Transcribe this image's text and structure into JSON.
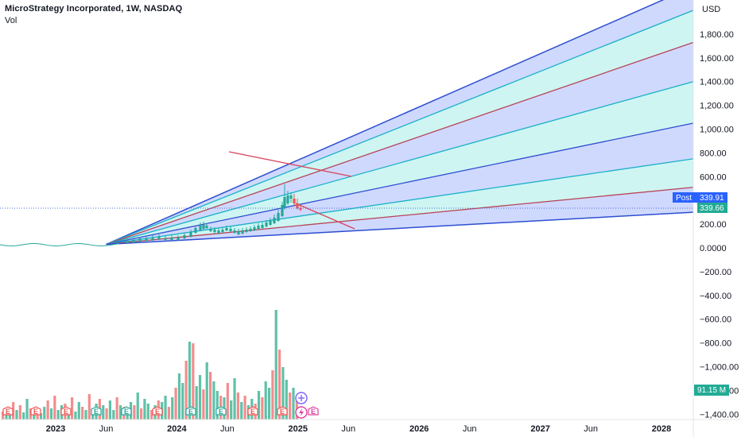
{
  "header": {
    "title": "MicroStrategy Incorporated, 1W, NASDAQ",
    "vol_label": "Vol",
    "currency": "USD"
  },
  "price_axis": {
    "ticks": [
      1800,
      1600,
      1400,
      1200,
      1000,
      800,
      600,
      400,
      200,
      0,
      -200,
      -400,
      -600,
      -800,
      -1000,
      -1200,
      -1400
    ],
    "tick_labels": [
      "1,800.00",
      "1,600.00",
      "1,400.00",
      "1,200.00",
      "1,000.00",
      "800.00",
      "600.00",
      "400.00",
      "200.00",
      "0.0000",
      "−200.00",
      "−400.00",
      "−600.00",
      "−800.00",
      "−1,000.00",
      "−1,200.00",
      "−1,400.00"
    ],
    "post_label": "Post",
    "post_value": "339.91",
    "last_value": "339.66",
    "volume_value": "91.15 M"
  },
  "time_axis": {
    "labels": [
      "2023",
      "Jun",
      "2024",
      "Jun",
      "2025",
      "Jun",
      "2026",
      "Jun",
      "2027",
      "Jun",
      "2028"
    ]
  },
  "chart_data": {
    "type": "candlestick",
    "interval": "1W",
    "x_range": [
      "2022-07",
      "2028-04"
    ],
    "y_range": [
      -1450,
      1920
    ],
    "last_price": 339.66,
    "post_price": 339.91,
    "gann_fan": {
      "origin": {
        "date": "2023-06",
        "value": 30
      },
      "anchor": {
        "date": "2024-03",
        "value": 140
      },
      "fan_lines_through_2028_04": [
        2200,
        2000,
        1730,
        1400,
        1050,
        750,
        510,
        300
      ],
      "fill_colors": [
        "#c7d2fe",
        "#c6f3f0"
      ],
      "line_colors": [
        "#2d4ed1",
        "#1ab0c8",
        "#b84455"
      ]
    },
    "candles_ohlc_weekly_approx": [
      {
        "date": "2024-12",
        "value_high": 540,
        "value_close": 380
      },
      {
        "date": "2025-01",
        "value_close": 339.66
      }
    ],
    "volume": {
      "label": "Vol",
      "latest": "91.15 M",
      "colors": {
        "up": "#5fc1a8",
        "down": "#f28e8e"
      }
    },
    "earnings_markers": [
      "E",
      "E",
      "E",
      "E",
      "E",
      "E",
      "E",
      "E",
      "E",
      "E",
      "E",
      "E",
      "E"
    ]
  }
}
